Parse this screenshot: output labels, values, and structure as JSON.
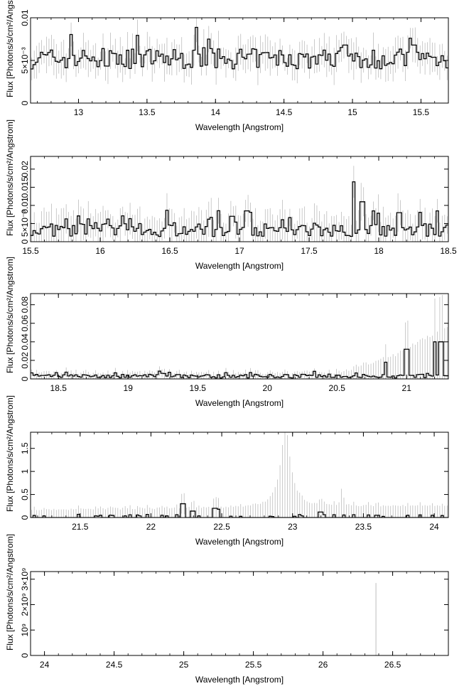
{
  "chart_data": [
    {
      "type": "histogram-step",
      "xlabel": "Wavelength [Angstrom]",
      "ylabel": "Flux [Photons/s/cm²/Angstrom]",
      "xlim": [
        12.65,
        15.7
      ],
      "ylim": [
        0,
        0.01
      ],
      "xticks": [
        {
          "v": 13,
          "t": "13"
        },
        {
          "v": 13.5,
          "t": "13.5"
        },
        {
          "v": 14,
          "t": "14"
        },
        {
          "v": 14.5,
          "t": "14.5"
        },
        {
          "v": 15,
          "t": "15"
        },
        {
          "v": 15.5,
          "t": "15.5"
        }
      ],
      "yticks": [
        {
          "v": 0,
          "t": "0"
        },
        {
          "v": 0.005,
          "t": "5×10⁻³"
        },
        {
          "v": 0.01,
          "t": "0.01"
        }
      ],
      "profile": {
        "base": 0.0052,
        "noise": 0.0012,
        "err": 0.0016,
        "spikes": [
          [
            14.95,
            0.0068
          ],
          [
            15.15,
            0.0062
          ],
          [
            15.45,
            0.0068
          ],
          [
            13.95,
            0.0075
          ]
        ]
      },
      "bins": 170
    },
    {
      "type": "histogram-step",
      "xlabel": "Wavelength [Angstrom]",
      "ylabel": "Flux [Photons/s/cm²/Angstrom]",
      "xlim": [
        15.5,
        18.5
      ],
      "ylim": [
        0,
        0.0235
      ],
      "xticks": [
        {
          "v": 15.5,
          "t": "15.5"
        },
        {
          "v": 16,
          "t": "16"
        },
        {
          "v": 16.5,
          "t": "16.5"
        },
        {
          "v": 17,
          "t": "17"
        },
        {
          "v": 17.5,
          "t": "17.5"
        },
        {
          "v": 18,
          "t": "18"
        },
        {
          "v": 18.5,
          "t": "18.5"
        }
      ],
      "yticks": [
        {
          "v": 0,
          "t": "0"
        },
        {
          "v": 0.005,
          "t": "5×10⁻³"
        },
        {
          "v": 0.01,
          "t": "0.01"
        },
        {
          "v": 0.015,
          "t": "0.015"
        },
        {
          "v": 0.02,
          "t": "0.02"
        }
      ],
      "profile": {
        "base": 0.0032,
        "noise": 0.0018,
        "err": 0.004,
        "spikes": [
          [
            17.82,
            0.0165
          ],
          [
            17.88,
            0.011
          ],
          [
            17.96,
            0.0085
          ],
          [
            17.05,
            0.0085
          ],
          [
            18.15,
            0.008
          ],
          [
            18.42,
            0.0085
          ],
          [
            16.95,
            0.007
          ]
        ]
      },
      "bins": 170
    },
    {
      "type": "histogram-step",
      "xlabel": "Wavelength [Angstrom]",
      "ylabel": "Flux [Photons/s/cm²/Angstrom]",
      "xlim": [
        18.3,
        21.3
      ],
      "ylim": [
        0,
        0.092
      ],
      "xticks": [
        {
          "v": 18.5,
          "t": "18.5"
        },
        {
          "v": 19,
          "t": "19"
        },
        {
          "v": 19.5,
          "t": "19.5"
        },
        {
          "v": 20,
          "t": "20"
        },
        {
          "v": 20.5,
          "t": "20.5"
        },
        {
          "v": 21,
          "t": "21"
        }
      ],
      "yticks": [
        {
          "v": 0,
          "t": "0"
        },
        {
          "v": 0.02,
          "t": "0.02"
        },
        {
          "v": 0.04,
          "t": "0.04"
        },
        {
          "v": 0.06,
          "t": "0.06"
        },
        {
          "v": 0.08,
          "t": "0.08"
        }
      ],
      "profile": {
        "base": 0.003,
        "noise": 0.002,
        "err": 0.004,
        "spikes": [
          [
            21.0,
            0.032
          ],
          [
            21.2,
            0.04
          ],
          [
            21.25,
            0.04
          ],
          [
            20.85,
            0.018
          ]
        ],
        "errgrow": [
          20.4,
          21.3,
          0.05
        ]
      },
      "bins": 170
    },
    {
      "type": "histogram-step",
      "xlabel": "Wavelength [Angstrom]",
      "ylabel": "Flux [Photons/s/cm²/Angstrom]",
      "xlim": [
        21.15,
        24.1
      ],
      "ylim": [
        0,
        1.85
      ],
      "xticks": [
        {
          "v": 21.5,
          "t": "21.5"
        },
        {
          "v": 22,
          "t": "22"
        },
        {
          "v": 22.5,
          "t": "22.5"
        },
        {
          "v": 23,
          "t": "23"
        },
        {
          "v": 23.5,
          "t": "23.5"
        },
        {
          "v": 24,
          "t": "24"
        }
      ],
      "yticks": [
        {
          "v": 0,
          "t": "0"
        },
        {
          "v": 0.5,
          "t": "0.5"
        },
        {
          "v": 1,
          "t": "1"
        },
        {
          "v": 1.5,
          "t": "1.5"
        }
      ],
      "profile": {
        "base": 0.0,
        "noise": 0.02,
        "err": 0.05,
        "spikes": [
          [
            22.23,
            0.3
          ],
          [
            22.45,
            0.2
          ],
          [
            22.48,
            0.18
          ],
          [
            22.3,
            0.14
          ],
          [
            23.2,
            0.12
          ],
          [
            23.6,
            0.05
          ],
          [
            21.85,
            0.06
          ]
        ],
        "errpeak": [
          [
            22.95,
            1.7,
            0.12
          ],
          [
            23.35,
            0.55,
            0.02
          ]
        ]
      },
      "bins": 170
    },
    {
      "type": "histogram-step",
      "xlabel": "Wavelength [Angstrom]",
      "ylabel": "Flux [Photons/s/cm²/Angstrom]",
      "xlim": [
        23.9,
        26.9
      ],
      "ylim": [
        0,
        3300000000
      ],
      "xticks": [
        {
          "v": 24,
          "t": "24"
        },
        {
          "v": 24.5,
          "t": "24.5"
        },
        {
          "v": 25,
          "t": "25"
        },
        {
          "v": 25.5,
          "t": "25.5"
        },
        {
          "v": 26,
          "t": "26"
        },
        {
          "v": 26.5,
          "t": "26.5"
        }
      ],
      "yticks": [
        {
          "v": 0,
          "t": "0"
        },
        {
          "v": 1000000000,
          "t": "10⁹"
        },
        {
          "v": 2000000000,
          "t": "2×10⁹"
        },
        {
          "v": 3000000000,
          "t": "3×10⁹"
        }
      ],
      "profile": {
        "base": 0,
        "noise": 0,
        "err": 0,
        "spikes": [],
        "errline": [
          26.38,
          2850000000
        ]
      },
      "bins": 0
    }
  ]
}
